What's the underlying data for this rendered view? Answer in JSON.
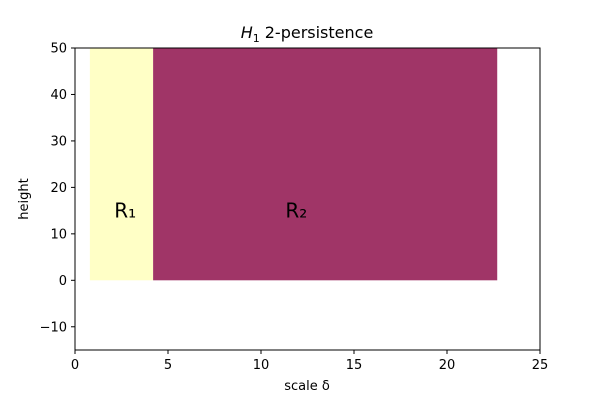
{
  "chart_data": {
    "type": "area",
    "title": {
      "symbol": "H",
      "subscript": "1",
      "text": "2-persistence"
    },
    "xlabel": "scale δ",
    "ylabel": "height",
    "xlim": [
      0,
      25
    ],
    "ylim": [
      -15,
      50
    ],
    "xticks": [
      0,
      5,
      10,
      15,
      20,
      25
    ],
    "yticks": [
      -10,
      0,
      10,
      20,
      30,
      40,
      50
    ],
    "xtick_labels": [
      "0",
      "5",
      "10",
      "15",
      "20",
      "25"
    ],
    "ytick_labels": [
      "−10",
      "0",
      "10",
      "20",
      "30",
      "40",
      "50"
    ],
    "grid": false,
    "regions": [
      {
        "label": "R₁",
        "x0": 0.8,
        "x1": 4.2,
        "y0": 0,
        "y1": 50,
        "color": "#ffffc6",
        "label_x": 2.7,
        "label_y": 15
      },
      {
        "label": "R₂",
        "x0": 4.2,
        "x1": 22.7,
        "y0": 0,
        "y1": 50,
        "color": "#a03567",
        "label_x": 11.9,
        "label_y": 15
      }
    ]
  }
}
